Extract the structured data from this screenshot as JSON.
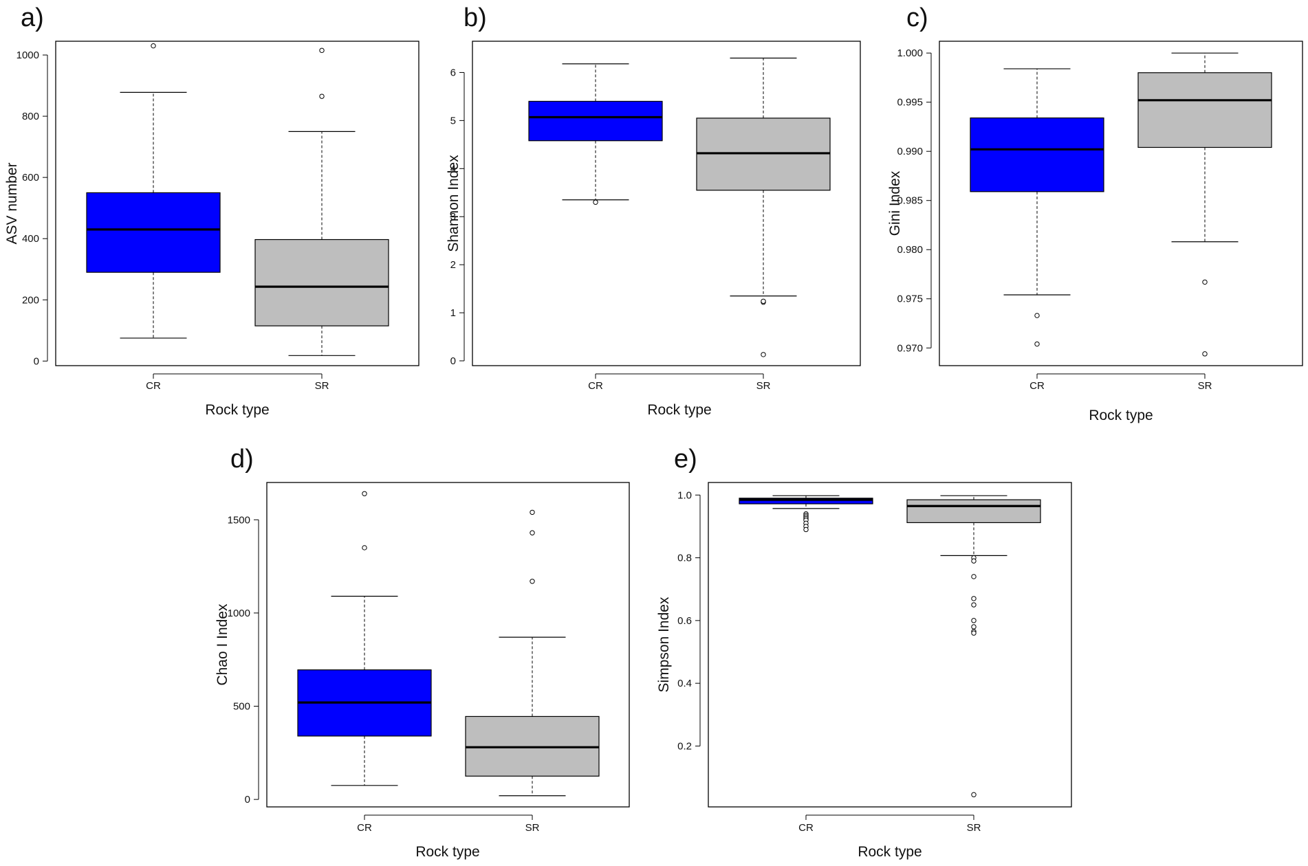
{
  "chart_data": [
    {
      "panel_label": "a)",
      "type": "boxplot",
      "title": "",
      "xlabel": "Rock type",
      "ylabel": "ASV number",
      "categories": [
        "CR",
        "SR"
      ],
      "ylim": [
        -15,
        1045
      ],
      "yticks": [
        0,
        200,
        400,
        600,
        800,
        1000
      ],
      "tick_labels": [
        "0",
        "200",
        "400",
        "600",
        "800",
        "1000"
      ],
      "grid": false,
      "boxes": [
        {
          "name": "CR",
          "color": "#0000ff",
          "whisker_low": 75,
          "q1": 290,
          "median": 430,
          "q3": 550,
          "whisker_high": 878,
          "outliers": [
            1030
          ]
        },
        {
          "name": "SR",
          "color": "#bebebe",
          "whisker_low": 18,
          "q1": 115,
          "median": 243,
          "q3": 397,
          "whisker_high": 750,
          "outliers": [
            865,
            1015
          ]
        }
      ]
    },
    {
      "panel_label": "b)",
      "type": "boxplot",
      "title": "",
      "xlabel": "Rock type",
      "ylabel": "Shannon Index",
      "categories": [
        "CR",
        "SR"
      ],
      "ylim": [
        -0.1,
        6.65
      ],
      "yticks": [
        0,
        1,
        2,
        3,
        4,
        5,
        6
      ],
      "tick_labels": [
        "0",
        "1",
        "2",
        "3",
        "4",
        "5",
        "6"
      ],
      "grid": false,
      "boxes": [
        {
          "name": "CR",
          "color": "#0000ff",
          "whisker_low": 3.35,
          "q1": 4.58,
          "median": 5.07,
          "q3": 5.4,
          "whisker_high": 6.18,
          "outliers": [
            3.3
          ]
        },
        {
          "name": "SR",
          "color": "#bebebe",
          "whisker_low": 1.35,
          "q1": 3.55,
          "median": 4.32,
          "q3": 5.05,
          "whisker_high": 6.3,
          "outliers": [
            1.22,
            1.24,
            0.13
          ]
        }
      ]
    },
    {
      "panel_label": "c)",
      "type": "boxplot",
      "title": "",
      "xlabel": "Rock type",
      "ylabel": "Gini Index",
      "categories": [
        "CR",
        "SR"
      ],
      "ylim": [
        0.9682,
        1.0012
      ],
      "yticks": [
        0.97,
        0.975,
        0.98,
        0.985,
        0.99,
        0.995,
        1.0
      ],
      "tick_labels": [
        "0.970",
        "0.975",
        "0.980",
        "0.985",
        "0.990",
        "0.995",
        "1.000"
      ],
      "grid": false,
      "boxes": [
        {
          "name": "CR",
          "color": "#0000ff",
          "whisker_low": 0.9754,
          "q1": 0.9859,
          "median": 0.9902,
          "q3": 0.9934,
          "whisker_high": 0.9984,
          "outliers": [
            0.9733,
            0.9704
          ]
        },
        {
          "name": "SR",
          "color": "#bebebe",
          "whisker_low": 0.9808,
          "q1": 0.9904,
          "median": 0.9952,
          "q3": 0.998,
          "whisker_high": 1.0,
          "outliers": [
            0.9767,
            0.9694
          ]
        }
      ]
    },
    {
      "panel_label": "d)",
      "type": "boxplot",
      "title": "",
      "xlabel": "Rock type",
      "ylabel": "Chao I Index",
      "categories": [
        "CR",
        "SR"
      ],
      "ylim": [
        -40,
        1700
      ],
      "yticks": [
        0,
        500,
        1000,
        1500
      ],
      "tick_labels": [
        "0",
        "500",
        "1000",
        "1500"
      ],
      "grid": false,
      "boxes": [
        {
          "name": "CR",
          "color": "#0000ff",
          "whisker_low": 75,
          "q1": 340,
          "median": 520,
          "q3": 695,
          "whisker_high": 1090,
          "outliers": [
            1350,
            1640
          ]
        },
        {
          "name": "SR",
          "color": "#bebebe",
          "whisker_low": 20,
          "q1": 125,
          "median": 280,
          "q3": 445,
          "whisker_high": 870,
          "outliers": [
            1170,
            1430,
            1540
          ]
        }
      ]
    },
    {
      "panel_label": "e)",
      "type": "boxplot",
      "title": "",
      "xlabel": "Rock type",
      "ylabel": "Simpson Index",
      "categories": [
        "CR",
        "SR"
      ],
      "ylim": [
        0.006,
        1.04
      ],
      "yticks": [
        0.2,
        0.4,
        0.6,
        0.8,
        1.0
      ],
      "tick_labels": [
        "0.2",
        "0.4",
        "0.6",
        "0.8",
        "1.0"
      ],
      "grid": false,
      "boxes": [
        {
          "name": "CR",
          "color": "#0000ff",
          "whisker_low": 0.957,
          "q1": 0.972,
          "median": 0.985,
          "q3": 0.99,
          "whisker_high": 0.998,
          "outliers": [
            0.94,
            0.935,
            0.93,
            0.925,
            0.92,
            0.91,
            0.9,
            0.89
          ]
        },
        {
          "name": "SR",
          "color": "#bebebe",
          "whisker_low": 0.807,
          "q1": 0.912,
          "median": 0.965,
          "q3": 0.985,
          "whisker_high": 0.998,
          "outliers": [
            0.8,
            0.79,
            0.74,
            0.67,
            0.65,
            0.6,
            0.58,
            0.565,
            0.56,
            0.045
          ]
        }
      ]
    }
  ]
}
